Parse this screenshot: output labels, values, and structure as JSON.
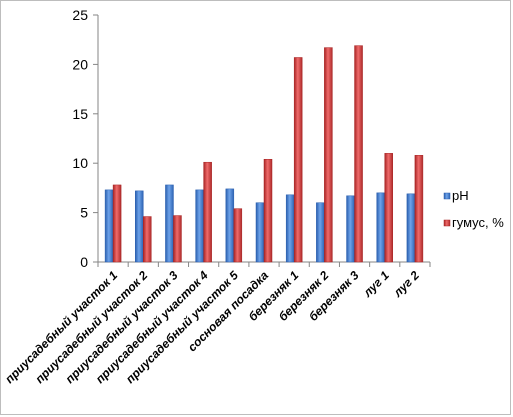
{
  "chart_data": {
    "type": "bar",
    "categories": [
      "приусадебный участок 1",
      "приусадебный участок 2",
      "приусадебный участок 3",
      "приусадебный участок 4",
      "приусадебный участок 5",
      "сосновая посадка",
      "березняк 1",
      "березняк 2",
      "березняк 3",
      "луг 1",
      "луг 2"
    ],
    "series": [
      {
        "name": "pH",
        "color": "#3f7ccf",
        "values": [
          7.3,
          7.2,
          7.8,
          7.3,
          7.4,
          6.0,
          6.8,
          6.0,
          6.7,
          7.0,
          6.9
        ]
      },
      {
        "name": "гумус, %",
        "color": "#d23b3b",
        "values": [
          7.8,
          4.6,
          4.7,
          10.1,
          5.4,
          10.4,
          20.7,
          21.7,
          21.9,
          11.0,
          10.8
        ]
      }
    ],
    "yticks": [
      "0",
      "5",
      "10",
      "15",
      "20",
      "25"
    ],
    "ylim": [
      0,
      25
    ],
    "title": "",
    "xlabel": "",
    "ylabel": "",
    "grid": false,
    "legend_position": "right"
  }
}
